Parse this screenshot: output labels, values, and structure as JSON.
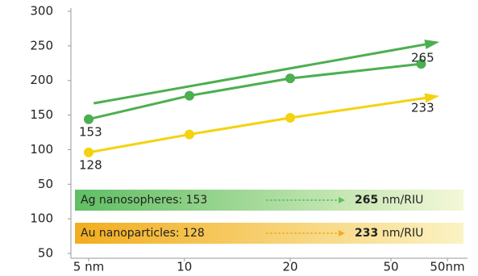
{
  "chart_data": {
    "type": "line",
    "xlim": [
      -0.16,
      3.68
    ],
    "xticks": [
      {
        "value": 0,
        "label": "5 nm"
      },
      {
        "value": 0.95,
        "label": "10"
      },
      {
        "value": 2,
        "label": "20"
      },
      {
        "value": 3,
        "label": "50"
      },
      {
        "value": 3.56,
        "label": "50nm"
      }
    ],
    "ylim": [
      -50,
      300
    ],
    "yticks": [
      300,
      250,
      200,
      150,
      {
        "value": 100,
        "label": "100"
      },
      {
        "value": 50,
        "label": "50"
      },
      {
        "value": 0,
        "label": "100"
      },
      {
        "value": -50,
        "label": "50"
      }
    ],
    "series": [
      {
        "color": "#4caf50",
        "x": [
          0.05,
          3.45
        ],
        "values": [
          167,
          255
        ],
        "markers": false,
        "arrow": true
      },
      {
        "color": "#4caf50",
        "x": [
          0,
          1,
          2,
          3.3
        ],
        "values": [
          144,
          178,
          203,
          224
        ],
        "markers": true,
        "arrow": false
      },
      {
        "color": "#f5d20f",
        "x": [
          0,
          1,
          2,
          3.45
        ],
        "values": [
          96,
          122,
          146,
          177
        ],
        "markers": true,
        "arrow": true
      }
    ],
    "annotations": [
      "153",
      "265",
      "128",
      "233"
    ],
    "banners": [
      {
        "label": "Ag nanosopheres: 153",
        "to": "265",
        "unit": "nm/RIU",
        "color": "#5fbf63"
      },
      {
        "label": "Au nanoparticles: 128",
        "to": "233",
        "unit": "nm/RIU",
        "color": "#f2ad1e"
      }
    ]
  }
}
